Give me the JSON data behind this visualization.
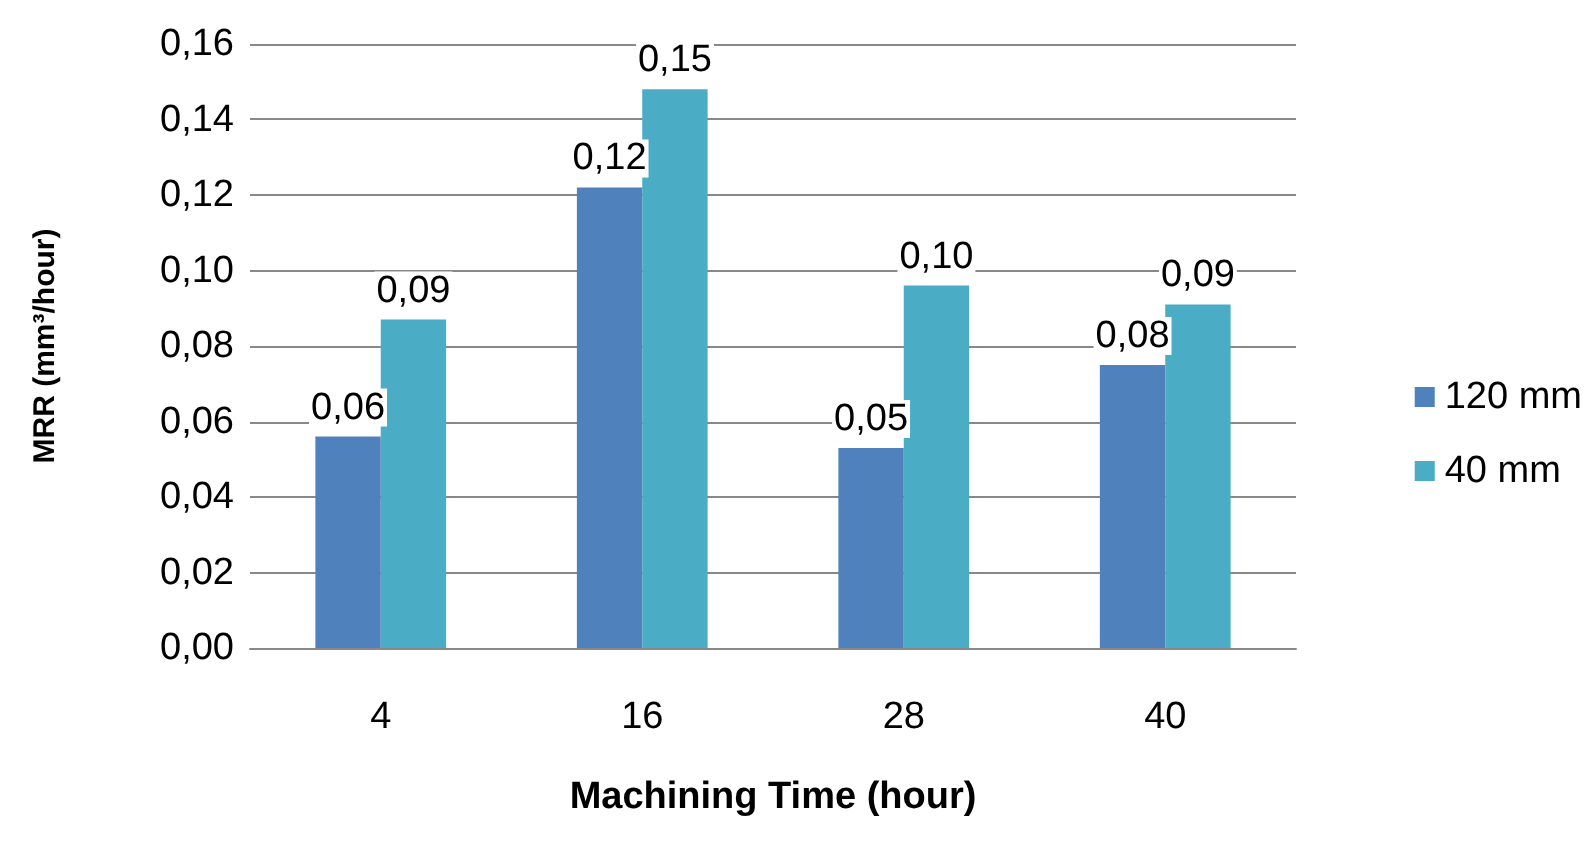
{
  "chart_data": {
    "type": "bar",
    "xlabel": "Machining Time (hour)",
    "ylabel": "MRR (mm³/hour)",
    "categories": [
      "4",
      "16",
      "28",
      "40"
    ],
    "series": [
      {
        "name": "120 mm",
        "color": "#4f81bd",
        "values": [
          0.056,
          0.122,
          0.053,
          0.075
        ],
        "value_labels": [
          "0,06",
          "0,12",
          "0,05",
          "0,08"
        ]
      },
      {
        "name": "40 mm",
        "color": "#4bacc6",
        "values": [
          0.087,
          0.148,
          0.096,
          0.091
        ],
        "value_labels": [
          "0,09",
          "0,15",
          "0,10",
          "0,09"
        ]
      }
    ],
    "ylim": [
      0,
      0.16
    ],
    "yticks": [
      {
        "value": 0,
        "label": "0,00"
      },
      {
        "value": 0.02,
        "label": "0,02"
      },
      {
        "value": 0.04,
        "label": "0,04"
      },
      {
        "value": 0.06,
        "label": "0,06"
      },
      {
        "value": 0.08,
        "label": "0,08"
      },
      {
        "value": 0.1,
        "label": "0,10"
      },
      {
        "value": 0.12,
        "label": "0,12"
      },
      {
        "value": 0.14,
        "label": "0,14"
      },
      {
        "value": 0.16,
        "label": "0,16"
      }
    ],
    "grid": "y",
    "legend": "right"
  }
}
